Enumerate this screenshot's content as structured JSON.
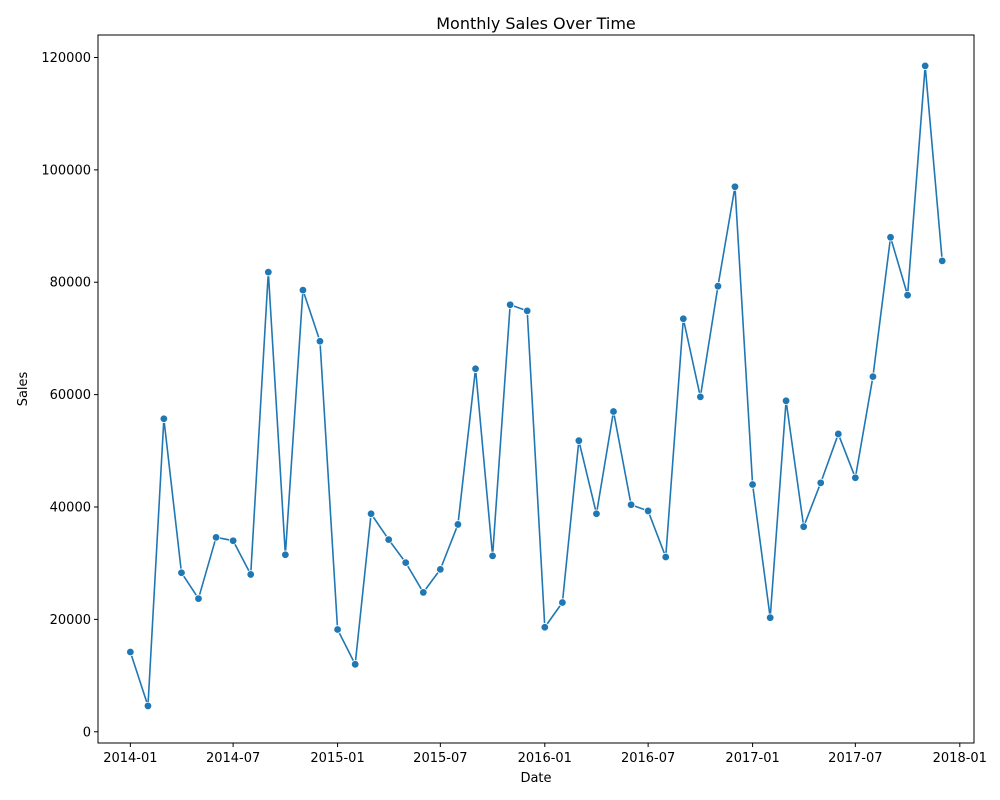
{
  "chart_data": {
    "type": "line",
    "title": "Monthly Sales Over Time",
    "xlabel": "Date",
    "ylabel": "Sales",
    "xlim": [
      "2013-11-05",
      "2018-01-26"
    ],
    "ylim": [
      -2000,
      124000
    ],
    "x_ticks": [
      "2014-01-01",
      "2014-07-01",
      "2015-01-01",
      "2015-07-01",
      "2016-01-01",
      "2016-07-01",
      "2017-01-01",
      "2017-07-01",
      "2018-01-01"
    ],
    "x_tick_labels": [
      "2014-01",
      "2014-07",
      "2015-01",
      "2015-07",
      "2016-01",
      "2016-07",
      "2017-01",
      "2017-07",
      "2018-01"
    ],
    "y_ticks": [
      0,
      20000,
      40000,
      60000,
      80000,
      100000,
      120000
    ],
    "y_tick_labels": [
      "0",
      "20000",
      "40000",
      "60000",
      "80000",
      "100000",
      "120000"
    ],
    "grid": false,
    "line_color": "#1f77b4",
    "series": [
      {
        "name": "",
        "x": [
          "2014-01-01",
          "2014-02-01",
          "2014-03-01",
          "2014-04-01",
          "2014-05-01",
          "2014-06-01",
          "2014-07-01",
          "2014-08-01",
          "2014-09-01",
          "2014-10-01",
          "2014-11-01",
          "2014-12-01",
          "2015-01-01",
          "2015-02-01",
          "2015-03-01",
          "2015-04-01",
          "2015-05-01",
          "2015-06-01",
          "2015-07-01",
          "2015-08-01",
          "2015-09-01",
          "2015-10-01",
          "2015-11-01",
          "2015-12-01",
          "2016-01-01",
          "2016-02-01",
          "2016-03-01",
          "2016-04-01",
          "2016-05-01",
          "2016-06-01",
          "2016-07-01",
          "2016-08-01",
          "2016-09-01",
          "2016-10-01",
          "2016-11-01",
          "2016-12-01",
          "2017-01-01",
          "2017-02-01",
          "2017-03-01",
          "2017-04-01",
          "2017-05-01",
          "2017-06-01",
          "2017-07-01",
          "2017-08-01",
          "2017-09-01",
          "2017-10-01",
          "2017-11-01",
          "2017-12-01"
        ],
        "values": [
          14200,
          4600,
          55700,
          28300,
          23700,
          34600,
          34000,
          28000,
          81800,
          31500,
          78600,
          69500,
          18200,
          12000,
          38800,
          34200,
          30100,
          24800,
          28900,
          36900,
          64600,
          31300,
          76000,
          74900,
          18600,
          23000,
          51800,
          38800,
          57000,
          40400,
          39300,
          31100,
          73500,
          59600,
          79300,
          97000,
          44000,
          20300,
          58900,
          36500,
          44300,
          53000,
          45200,
          63200,
          88000,
          77700,
          118500,
          83800
        ]
      }
    ]
  }
}
